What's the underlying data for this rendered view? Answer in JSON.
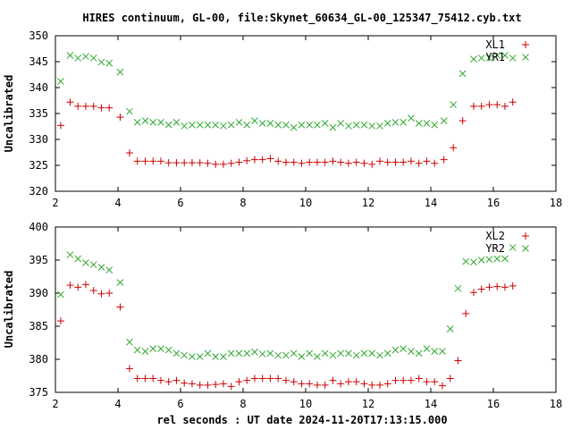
{
  "title": "HIRES continuum, GL-00, file:Skynet_60634_GL-00_125347_75412.cyb.txt",
  "xlabel": "rel seconds : UT date 2024-11-20T17:13:15.000",
  "colors": {
    "series_red": "#cc0000",
    "series_green": "#33aa33",
    "axis": "#000000",
    "text": "#000000",
    "background": "#ffffff"
  },
  "chart_data": [
    {
      "type": "scatter",
      "ylabel": "Uncalibrated",
      "xlim": [
        2,
        18
      ],
      "ylim": [
        320,
        350
      ],
      "x_ticks": [
        2,
        4,
        6,
        8,
        10,
        12,
        14,
        16,
        18
      ],
      "y_ticks": [
        320,
        325,
        330,
        335,
        340,
        345,
        350
      ],
      "legend_position": "top-right",
      "grid": false,
      "series": [
        {
          "name": "XL1",
          "marker": "plus",
          "color": "#cc0000",
          "points": [
            [
              2.17,
              332.7
            ],
            [
              2.47,
              337.2
            ],
            [
              2.72,
              336.4
            ],
            [
              2.97,
              336.4
            ],
            [
              3.22,
              336.4
            ],
            [
              3.47,
              336.1
            ],
            [
              3.72,
              336.1
            ],
            [
              4.07,
              334.3
            ],
            [
              4.37,
              327.4
            ],
            [
              4.62,
              325.8
            ],
            [
              4.87,
              325.8
            ],
            [
              5.12,
              325.8
            ],
            [
              5.37,
              325.8
            ],
            [
              5.62,
              325.5
            ],
            [
              5.87,
              325.5
            ],
            [
              6.12,
              325.5
            ],
            [
              6.37,
              325.5
            ],
            [
              6.62,
              325.5
            ],
            [
              6.87,
              325.4
            ],
            [
              7.12,
              325.2
            ],
            [
              7.37,
              325.2
            ],
            [
              7.62,
              325.4
            ],
            [
              7.87,
              325.6
            ],
            [
              8.12,
              325.9
            ],
            [
              8.37,
              326.1
            ],
            [
              8.62,
              326.1
            ],
            [
              8.87,
              326.3
            ],
            [
              9.12,
              325.8
            ],
            [
              9.37,
              325.6
            ],
            [
              9.62,
              325.6
            ],
            [
              9.87,
              325.4
            ],
            [
              10.12,
              325.6
            ],
            [
              10.37,
              325.6
            ],
            [
              10.62,
              325.6
            ],
            [
              10.87,
              325.8
            ],
            [
              11.12,
              325.6
            ],
            [
              11.37,
              325.4
            ],
            [
              11.62,
              325.6
            ],
            [
              11.87,
              325.4
            ],
            [
              12.12,
              325.2
            ],
            [
              12.37,
              325.8
            ],
            [
              12.62,
              325.6
            ],
            [
              12.87,
              325.6
            ],
            [
              13.12,
              325.6
            ],
            [
              13.37,
              325.8
            ],
            [
              13.62,
              325.4
            ],
            [
              13.87,
              325.8
            ],
            [
              14.12,
              325.4
            ],
            [
              14.42,
              326.1
            ],
            [
              14.72,
              328.4
            ],
            [
              15.02,
              333.6
            ],
            [
              15.37,
              336.4
            ],
            [
              15.62,
              336.4
            ],
            [
              15.87,
              336.7
            ],
            [
              16.12,
              336.7
            ],
            [
              16.37,
              336.4
            ],
            [
              16.62,
              337.2
            ]
          ]
        },
        {
          "name": "YR1",
          "marker": "cross",
          "color": "#33aa33",
          "points": [
            [
              2.17,
              341.2
            ],
            [
              2.47,
              346.2
            ],
            [
              2.72,
              345.7
            ],
            [
              2.97,
              346.0
            ],
            [
              3.22,
              345.7
            ],
            [
              3.47,
              344.9
            ],
            [
              3.72,
              344.7
            ],
            [
              4.07,
              343.0
            ],
            [
              4.37,
              335.4
            ],
            [
              4.62,
              333.3
            ],
            [
              4.87,
              333.6
            ],
            [
              5.12,
              333.3
            ],
            [
              5.37,
              333.3
            ],
            [
              5.62,
              332.8
            ],
            [
              5.87,
              333.3
            ],
            [
              6.12,
              332.6
            ],
            [
              6.37,
              332.8
            ],
            [
              6.62,
              332.8
            ],
            [
              6.87,
              332.8
            ],
            [
              7.12,
              332.8
            ],
            [
              7.37,
              332.6
            ],
            [
              7.62,
              332.8
            ],
            [
              7.87,
              333.3
            ],
            [
              8.12,
              332.8
            ],
            [
              8.37,
              333.6
            ],
            [
              8.62,
              333.1
            ],
            [
              8.87,
              333.1
            ],
            [
              9.12,
              332.8
            ],
            [
              9.37,
              332.8
            ],
            [
              9.62,
              332.3
            ],
            [
              9.87,
              332.8
            ],
            [
              10.12,
              332.8
            ],
            [
              10.37,
              332.8
            ],
            [
              10.62,
              333.1
            ],
            [
              10.87,
              332.3
            ],
            [
              11.12,
              333.1
            ],
            [
              11.37,
              332.6
            ],
            [
              11.62,
              332.8
            ],
            [
              11.87,
              332.8
            ],
            [
              12.12,
              332.6
            ],
            [
              12.37,
              332.6
            ],
            [
              12.62,
              333.1
            ],
            [
              12.87,
              333.3
            ],
            [
              13.12,
              333.3
            ],
            [
              13.37,
              334.1
            ],
            [
              13.62,
              333.1
            ],
            [
              13.87,
              333.1
            ],
            [
              14.12,
              332.8
            ],
            [
              14.42,
              333.6
            ],
            [
              14.72,
              336.7
            ],
            [
              15.02,
              342.7
            ],
            [
              15.37,
              345.5
            ],
            [
              15.62,
              345.7
            ],
            [
              15.87,
              345.7
            ],
            [
              16.12,
              346.2
            ],
            [
              16.37,
              346.2
            ],
            [
              16.62,
              345.7
            ]
          ]
        }
      ]
    },
    {
      "type": "scatter",
      "ylabel": "Uncalibrated",
      "xlim": [
        2,
        18
      ],
      "ylim": [
        375,
        400
      ],
      "x_ticks": [
        2,
        4,
        6,
        8,
        10,
        12,
        14,
        16,
        18
      ],
      "y_ticks": [
        375,
        380,
        385,
        390,
        395,
        400
      ],
      "legend_position": "top-right",
      "grid": false,
      "series": [
        {
          "name": "XL2",
          "marker": "plus",
          "color": "#cc0000",
          "points": [
            [
              2.17,
              385.8
            ],
            [
              2.47,
              391.2
            ],
            [
              2.72,
              390.9
            ],
            [
              2.97,
              391.3
            ],
            [
              3.22,
              390.4
            ],
            [
              3.47,
              389.9
            ],
            [
              3.72,
              390.0
            ],
            [
              4.07,
              387.9
            ],
            [
              4.37,
              378.6
            ],
            [
              4.62,
              377.1
            ],
            [
              4.87,
              377.1
            ],
            [
              5.12,
              377.1
            ],
            [
              5.37,
              376.8
            ],
            [
              5.62,
              376.6
            ],
            [
              5.87,
              376.8
            ],
            [
              6.12,
              376.4
            ],
            [
              6.37,
              376.3
            ],
            [
              6.62,
              376.1
            ],
            [
              6.87,
              376.1
            ],
            [
              7.12,
              376.2
            ],
            [
              7.37,
              376.3
            ],
            [
              7.62,
              375.9
            ],
            [
              7.87,
              376.6
            ],
            [
              8.12,
              376.8
            ],
            [
              8.37,
              377.1
            ],
            [
              8.62,
              377.1
            ],
            [
              8.87,
              377.1
            ],
            [
              9.12,
              377.1
            ],
            [
              9.37,
              376.8
            ],
            [
              9.62,
              376.6
            ],
            [
              9.87,
              376.3
            ],
            [
              10.12,
              376.3
            ],
            [
              10.37,
              376.1
            ],
            [
              10.62,
              376.1
            ],
            [
              10.87,
              376.8
            ],
            [
              11.12,
              376.3
            ],
            [
              11.37,
              376.6
            ],
            [
              11.62,
              376.6
            ],
            [
              11.87,
              376.3
            ],
            [
              12.12,
              376.1
            ],
            [
              12.37,
              376.1
            ],
            [
              12.62,
              376.3
            ],
            [
              12.87,
              376.8
            ],
            [
              13.12,
              376.8
            ],
            [
              13.37,
              376.8
            ],
            [
              13.62,
              377.1
            ],
            [
              13.87,
              376.6
            ],
            [
              14.12,
              376.6
            ],
            [
              14.37,
              376.0
            ],
            [
              14.62,
              377.1
            ],
            [
              14.87,
              379.8
            ],
            [
              15.12,
              386.9
            ],
            [
              15.37,
              390.1
            ],
            [
              15.62,
              390.6
            ],
            [
              15.87,
              390.9
            ],
            [
              16.12,
              391.0
            ],
            [
              16.37,
              390.9
            ],
            [
              16.62,
              391.1
            ]
          ]
        },
        {
          "name": "YR2",
          "marker": "cross",
          "color": "#33aa33",
          "points": [
            [
              2.17,
              389.8
            ],
            [
              2.47,
              395.8
            ],
            [
              2.72,
              395.2
            ],
            [
              2.97,
              394.6
            ],
            [
              3.22,
              394.3
            ],
            [
              3.47,
              393.9
            ],
            [
              3.72,
              393.5
            ],
            [
              4.07,
              391.6
            ],
            [
              4.37,
              382.6
            ],
            [
              4.62,
              381.4
            ],
            [
              4.87,
              381.2
            ],
            [
              5.12,
              381.6
            ],
            [
              5.37,
              381.6
            ],
            [
              5.62,
              381.4
            ],
            [
              5.87,
              380.9
            ],
            [
              6.12,
              380.6
            ],
            [
              6.37,
              380.4
            ],
            [
              6.62,
              380.4
            ],
            [
              6.87,
              380.9
            ],
            [
              7.12,
              380.4
            ],
            [
              7.37,
              380.4
            ],
            [
              7.62,
              380.9
            ],
            [
              7.87,
              380.9
            ],
            [
              8.12,
              380.9
            ],
            [
              8.37,
              381.1
            ],
            [
              8.62,
              380.8
            ],
            [
              8.87,
              380.9
            ],
            [
              9.12,
              380.6
            ],
            [
              9.37,
              380.6
            ],
            [
              9.62,
              380.9
            ],
            [
              9.87,
              380.4
            ],
            [
              10.12,
              380.9
            ],
            [
              10.37,
              380.4
            ],
            [
              10.62,
              380.9
            ],
            [
              10.87,
              380.6
            ],
            [
              11.12,
              380.9
            ],
            [
              11.37,
              380.9
            ],
            [
              11.62,
              380.6
            ],
            [
              11.87,
              380.9
            ],
            [
              12.12,
              380.9
            ],
            [
              12.37,
              380.6
            ],
            [
              12.62,
              380.9
            ],
            [
              12.87,
              381.4
            ],
            [
              13.12,
              381.6
            ],
            [
              13.37,
              381.2
            ],
            [
              13.62,
              380.9
            ],
            [
              13.87,
              381.6
            ],
            [
              14.12,
              381.2
            ],
            [
              14.37,
              381.2
            ],
            [
              14.62,
              384.6
            ],
            [
              14.87,
              390.7
            ],
            [
              15.12,
              394.8
            ],
            [
              15.37,
              394.7
            ],
            [
              15.62,
              395.0
            ],
            [
              15.87,
              395.1
            ],
            [
              16.12,
              395.2
            ],
            [
              16.37,
              395.2
            ],
            [
              16.62,
              396.9
            ]
          ]
        }
      ]
    }
  ]
}
